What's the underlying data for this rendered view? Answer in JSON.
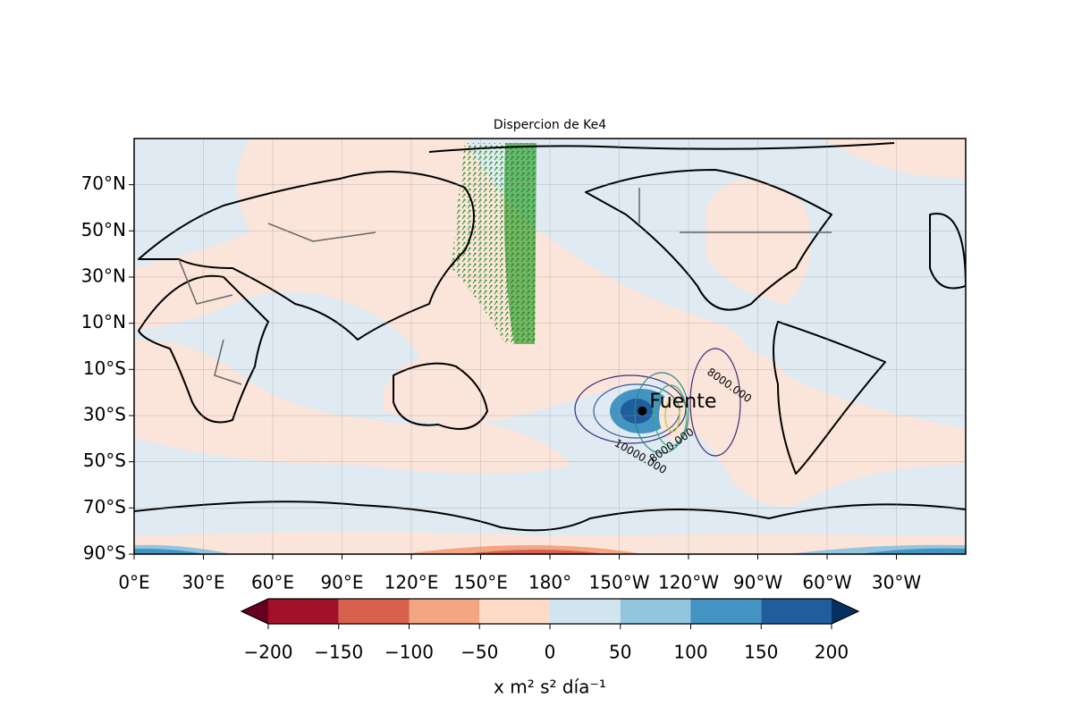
{
  "title": "Dispercion de Ke4",
  "map": {
    "lonlim": [
      0,
      360
    ],
    "latlim": [
      -90,
      90
    ],
    "lat_ticks": [
      {
        "value": -90,
        "label": "90°S"
      },
      {
        "value": -70,
        "label": "70°S"
      },
      {
        "value": -50,
        "label": "50°S"
      },
      {
        "value": -30,
        "label": "30°S"
      },
      {
        "value": -10,
        "label": "10°S"
      },
      {
        "value": 10,
        "label": "10°N"
      },
      {
        "value": 30,
        "label": "30°N"
      },
      {
        "value": 50,
        "label": "50°N"
      },
      {
        "value": 70,
        "label": "70°N"
      }
    ],
    "lon_ticks": [
      {
        "value": 0,
        "label": "0°E"
      },
      {
        "value": 30,
        "label": "30°E"
      },
      {
        "value": 60,
        "label": "60°E"
      },
      {
        "value": 90,
        "label": "90°E"
      },
      {
        "value": 120,
        "label": "120°E"
      },
      {
        "value": 150,
        "label": "150°E"
      },
      {
        "value": 180,
        "label": "180°"
      },
      {
        "value": 210,
        "label": "150°W"
      },
      {
        "value": 240,
        "label": "120°W"
      },
      {
        "value": 270,
        "label": "90°W"
      },
      {
        "value": 300,
        "label": "60°W"
      },
      {
        "value": 330,
        "label": "30°W"
      }
    ],
    "grid": true,
    "source": {
      "label": "Fuente",
      "lon": 220,
      "lat": -28
    },
    "contour_labels": [
      "8000.000",
      "10000.000",
      "8000.000"
    ]
  },
  "colorbar": {
    "label": "x m² s² día⁻¹",
    "ticks": [
      {
        "value": -200,
        "label": "−200"
      },
      {
        "value": -150,
        "label": "−150"
      },
      {
        "value": -100,
        "label": "−100"
      },
      {
        "value": -50,
        "label": "−50"
      },
      0,
      50,
      100,
      150,
      200
    ],
    "colors": [
      "#a11228",
      "#d6604d",
      "#f4a582",
      "#fddbc7",
      "#d1e5f0",
      "#92c5de",
      "#4393c3",
      "#1f5d9d"
    ],
    "extend_colors": [
      "#67001f",
      "#053061"
    ]
  }
}
